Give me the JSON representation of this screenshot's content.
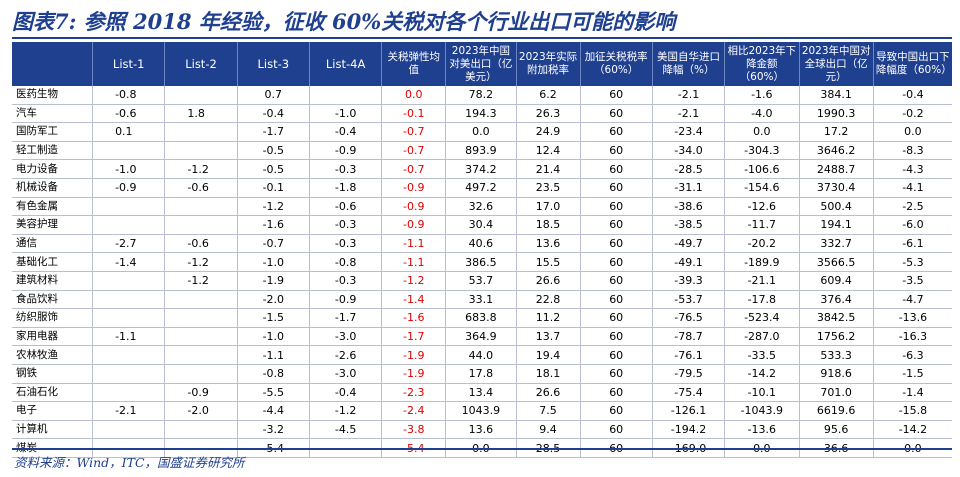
{
  "title": "图表7:  参照 2018 年经验，征收 60%关税对各个行业出口可能的影响",
  "source": "资料来源：Wind，ITC，国盛证券研究所",
  "headers": [
    "",
    "List-1",
    "List-2",
    "List-3",
    "List-4A",
    "关税弹性均值",
    "2023年中国对美出口（亿美元）",
    "2023年实际附加税率",
    "加征关税税率（60%）",
    "美国自华进口降幅（%）",
    "相比2023年下降金额（60%）",
    "2023年中国对全球出口（亿元）",
    "导致中国出口下降幅度（60%）"
  ],
  "rows": [
    [
      "医药生物",
      "-0.8",
      "",
      "0.7",
      "",
      "0.0",
      "78.2",
      "6.2",
      "60",
      "-2.1",
      "-1.6",
      "384.1",
      "-0.4"
    ],
    [
      "汽车",
      "-0.6",
      "1.8",
      "-0.4",
      "-1.0",
      "-0.1",
      "194.3",
      "26.3",
      "60",
      "-2.1",
      "-4.0",
      "1990.3",
      "-0.2"
    ],
    [
      "国防军工",
      "0.1",
      "",
      "-1.7",
      "-0.4",
      "-0.7",
      "0.0",
      "24.9",
      "60",
      "-23.4",
      "0.0",
      "17.2",
      "0.0"
    ],
    [
      "轻工制造",
      "",
      "",
      "-0.5",
      "-0.9",
      "-0.7",
      "893.9",
      "12.4",
      "60",
      "-34.0",
      "-304.3",
      "3646.2",
      "-8.3"
    ],
    [
      "电力设备",
      "-1.0",
      "-1.2",
      "-0.5",
      "-0.3",
      "-0.7",
      "374.2",
      "21.4",
      "60",
      "-28.5",
      "-106.6",
      "2488.7",
      "-4.3"
    ],
    [
      "机械设备",
      "-0.9",
      "-0.6",
      "-0.1",
      "-1.8",
      "-0.9",
      "497.2",
      "23.5",
      "60",
      "-31.1",
      "-154.6",
      "3730.4",
      "-4.1"
    ],
    [
      "有色金属",
      "",
      "",
      "-1.2",
      "-0.6",
      "-0.9",
      "32.6",
      "17.0",
      "60",
      "-38.6",
      "-12.6",
      "500.4",
      "-2.5"
    ],
    [
      "美容护理",
      "",
      "",
      "-1.6",
      "-0.3",
      "-0.9",
      "30.4",
      "18.5",
      "60",
      "-38.5",
      "-11.7",
      "194.1",
      "-6.0"
    ],
    [
      "通信",
      "-2.7",
      "-0.6",
      "-0.7",
      "-0.3",
      "-1.1",
      "40.6",
      "13.6",
      "60",
      "-49.7",
      "-20.2",
      "332.7",
      "-6.1"
    ],
    [
      "基础化工",
      "-1.4",
      "-1.2",
      "-1.0",
      "-0.8",
      "-1.1",
      "386.5",
      "15.5",
      "60",
      "-49.1",
      "-189.9",
      "3566.5",
      "-5.3"
    ],
    [
      "建筑材料",
      "",
      "-1.2",
      "-1.9",
      "-0.3",
      "-1.2",
      "53.7",
      "26.6",
      "60",
      "-39.3",
      "-21.1",
      "609.4",
      "-3.5"
    ],
    [
      "食品饮料",
      "",
      "",
      "-2.0",
      "-0.9",
      "-1.4",
      "33.1",
      "22.8",
      "60",
      "-53.7",
      "-17.8",
      "376.4",
      "-4.7"
    ],
    [
      "纺织服饰",
      "",
      "",
      "-1.5",
      "-1.7",
      "-1.6",
      "683.8",
      "11.2",
      "60",
      "-76.5",
      "-523.4",
      "3842.5",
      "-13.6"
    ],
    [
      "家用电器",
      "-1.1",
      "",
      "-1.0",
      "-3.0",
      "-1.7",
      "364.9",
      "13.7",
      "60",
      "-78.7",
      "-287.0",
      "1756.2",
      "-16.3"
    ],
    [
      "农林牧渔",
      "",
      "",
      "-1.1",
      "-2.6",
      "-1.9",
      "44.0",
      "19.4",
      "60",
      "-76.1",
      "-33.5",
      "533.3",
      "-6.3"
    ],
    [
      "钢铁",
      "",
      "",
      "-0.8",
      "-3.0",
      "-1.9",
      "17.8",
      "18.1",
      "60",
      "-79.5",
      "-14.2",
      "918.6",
      "-1.5"
    ],
    [
      "石油石化",
      "",
      "-0.9",
      "-5.5",
      "-0.4",
      "-2.3",
      "13.4",
      "26.6",
      "60",
      "-75.4",
      "-10.1",
      "701.0",
      "-1.4"
    ],
    [
      "电子",
      "-2.1",
      "-2.0",
      "-4.4",
      "-1.2",
      "-2.4",
      "1043.9",
      "7.5",
      "60",
      "-126.1",
      "-1043.9",
      "6619.6",
      "-15.8"
    ],
    [
      "计算机",
      "",
      "",
      "-3.2",
      "-4.5",
      "-3.8",
      "13.6",
      "9.4",
      "60",
      "-194.2",
      "-13.6",
      "95.6",
      "-14.2"
    ],
    [
      "煤炭",
      "",
      "",
      "-5.4",
      "",
      "-5.4",
      "0.0",
      "28.5",
      "60",
      "-169.0",
      "0.0",
      "36.6",
      "0.0"
    ]
  ],
  "colors": {
    "header_bg": "#1f3f8f",
    "elasticity_text": "#e00000"
  }
}
